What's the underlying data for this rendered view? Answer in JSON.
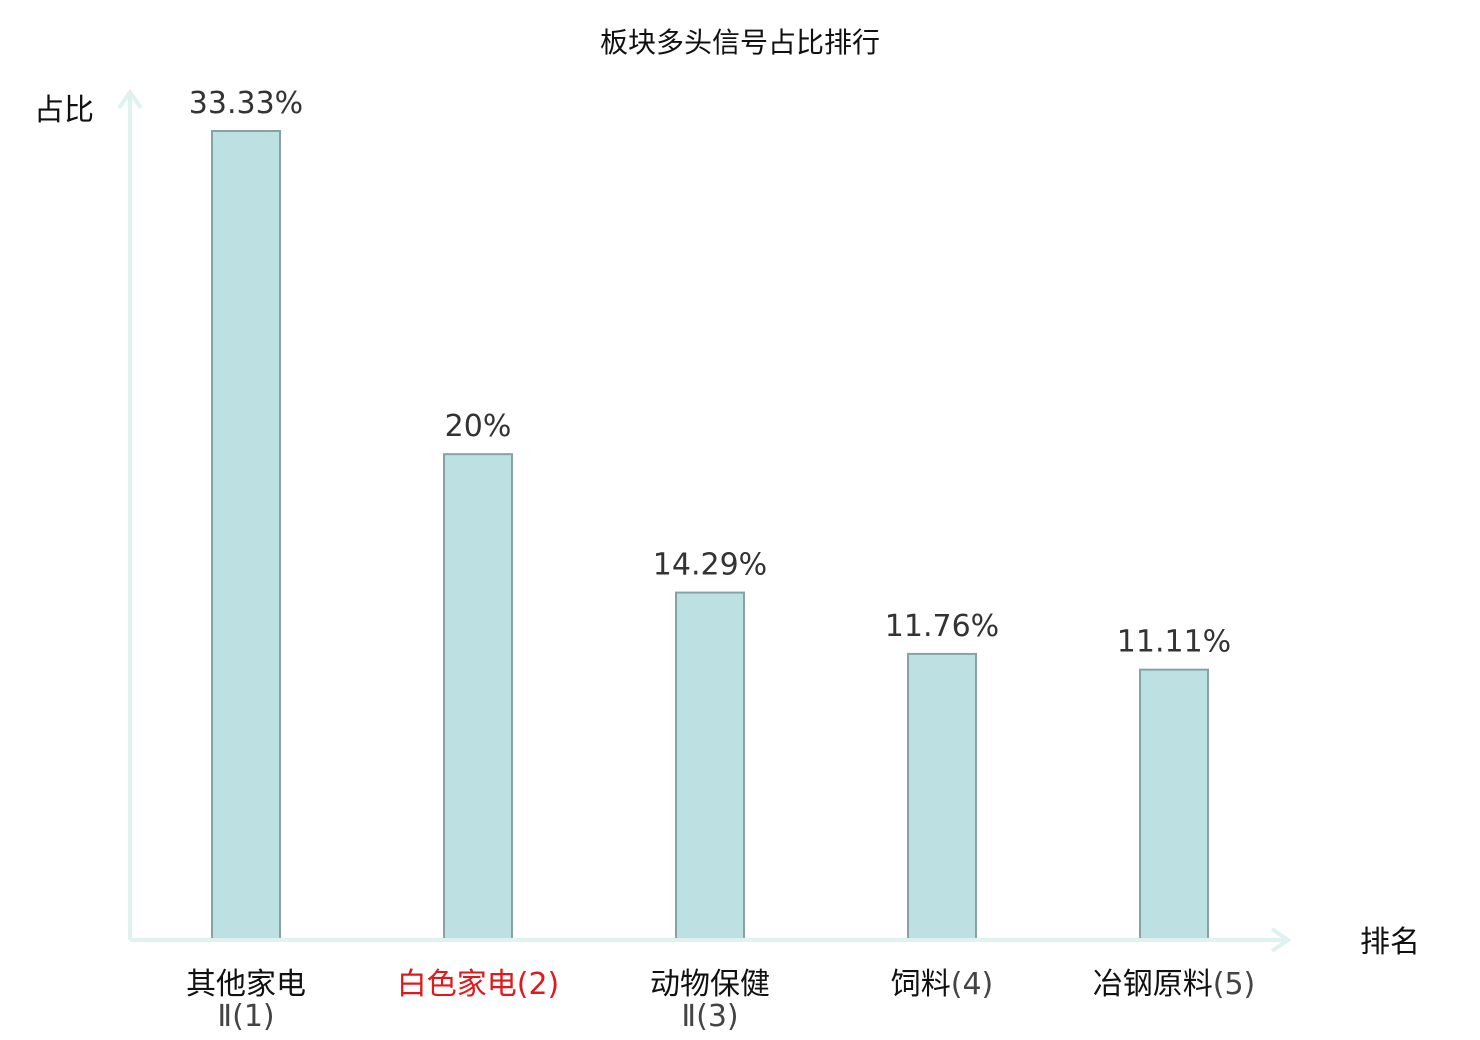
{
  "chart_data": {
    "type": "bar",
    "title": "板块多头信号占比排行",
    "xlabel": "排名",
    "ylabel": "占比",
    "categories": [
      {
        "name": "其他家电",
        "name2": "Ⅱ",
        "rank": "(1)",
        "highlight": false
      },
      {
        "name": "白色家电",
        "name2": "",
        "rank": "(2)",
        "highlight": true
      },
      {
        "name": "动物保健",
        "name2": "Ⅱ",
        "rank": "(3)",
        "highlight": false
      },
      {
        "name": "饲料",
        "name2": "",
        "rank": "(4)",
        "highlight": false
      },
      {
        "name": "冶钢原料",
        "name2": "",
        "rank": "(5)",
        "highlight": false
      }
    ],
    "values": [
      33.33,
      20,
      14.29,
      11.76,
      11.11
    ],
    "value_labels": [
      "33.33%",
      "20%",
      "14.29%",
      "11.76%",
      "11.11%"
    ],
    "ylim": [
      0,
      33.33
    ],
    "grid": false,
    "colors": {
      "bar_fill": "#bde0e2",
      "bar_stroke": "#86a3a4",
      "axis": "#dff2ef",
      "highlight": "#e0191c",
      "text": "#111111"
    }
  }
}
